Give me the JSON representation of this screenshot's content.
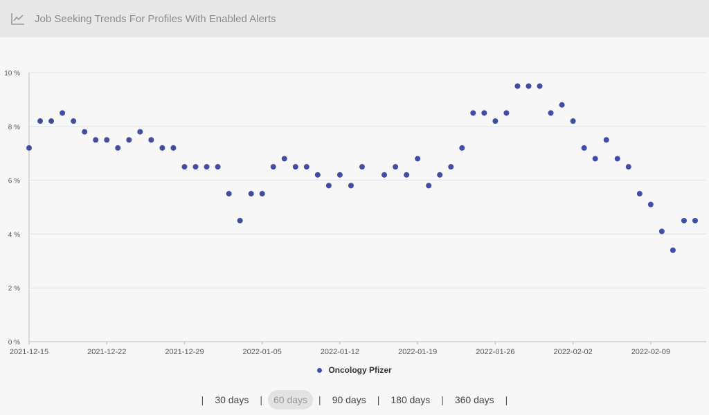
{
  "header": {
    "title": "Job Seeking Trends For Profiles With Enabled Alerts",
    "icon": "line-chart-icon"
  },
  "ranges": {
    "options": [
      "30 days",
      "60 days",
      "90 days",
      "180 days",
      "360 days"
    ],
    "selected": "60 days",
    "separator": "|"
  },
  "colors": {
    "series": "#3f4ea3",
    "grid": "#e3e3e3",
    "axis": "#bbbbbb",
    "header_bg": "#e8e8e8"
  },
  "chart_data": {
    "type": "scatter",
    "title": "",
    "xlabel": "",
    "ylabel": "",
    "ylim": [
      0,
      10
    ],
    "xlim": [
      "2021-12-15",
      "2022-02-14"
    ],
    "yticks": [
      "0 %",
      "2 %",
      "4 %",
      "6 %",
      "8 %",
      "10 %"
    ],
    "xticks": [
      "2021-12-15",
      "2021-12-22",
      "2021-12-29",
      "2022-01-05",
      "2022-01-12",
      "2022-01-19",
      "2022-01-26",
      "2022-02-02",
      "2022-02-09"
    ],
    "grid": true,
    "legend_position": "bottom",
    "series": [
      {
        "name": "Oncology Pfizer",
        "color": "#3f4ea3",
        "points": [
          [
            "2021-12-15",
            7.2
          ],
          [
            "2021-12-16",
            8.2
          ],
          [
            "2021-12-17",
            8.2
          ],
          [
            "2021-12-18",
            8.5
          ],
          [
            "2021-12-19",
            8.2
          ],
          [
            "2021-12-20",
            7.8
          ],
          [
            "2021-12-21",
            7.5
          ],
          [
            "2021-12-22",
            7.5
          ],
          [
            "2021-12-23",
            7.2
          ],
          [
            "2021-12-24",
            7.5
          ],
          [
            "2021-12-25",
            7.8
          ],
          [
            "2021-12-26",
            7.5
          ],
          [
            "2021-12-27",
            7.2
          ],
          [
            "2021-12-28",
            7.2
          ],
          [
            "2021-12-29",
            6.5
          ],
          [
            "2021-12-30",
            6.5
          ],
          [
            "2021-12-31",
            6.5
          ],
          [
            "2022-01-01",
            6.5
          ],
          [
            "2022-01-02",
            5.5
          ],
          [
            "2022-01-03",
            4.5
          ],
          [
            "2022-01-04",
            5.5
          ],
          [
            "2022-01-05",
            5.5
          ],
          [
            "2022-01-06",
            6.5
          ],
          [
            "2022-01-07",
            6.8
          ],
          [
            "2022-01-08",
            6.5
          ],
          [
            "2022-01-09",
            6.5
          ],
          [
            "2022-01-10",
            6.2
          ],
          [
            "2022-01-11",
            5.8
          ],
          [
            "2022-01-12",
            6.2
          ],
          [
            "2022-01-13",
            5.8
          ],
          [
            "2022-01-14",
            6.5
          ],
          [
            "2022-01-16",
            6.2
          ],
          [
            "2022-01-17",
            6.5
          ],
          [
            "2022-01-18",
            6.2
          ],
          [
            "2022-01-19",
            6.8
          ],
          [
            "2022-01-20",
            5.8
          ],
          [
            "2022-01-21",
            6.2
          ],
          [
            "2022-01-22",
            6.5
          ],
          [
            "2022-01-23",
            7.2
          ],
          [
            "2022-01-24",
            8.5
          ],
          [
            "2022-01-25",
            8.5
          ],
          [
            "2022-01-26",
            8.2
          ],
          [
            "2022-01-27",
            8.5
          ],
          [
            "2022-01-28",
            9.5
          ],
          [
            "2022-01-29",
            9.5
          ],
          [
            "2022-01-30",
            9.5
          ],
          [
            "2022-01-31",
            8.5
          ],
          [
            "2022-02-01",
            8.8
          ],
          [
            "2022-02-02",
            8.2
          ],
          [
            "2022-02-03",
            7.2
          ],
          [
            "2022-02-04",
            6.8
          ],
          [
            "2022-02-05",
            7.5
          ],
          [
            "2022-02-06",
            6.8
          ],
          [
            "2022-02-07",
            6.5
          ],
          [
            "2022-02-08",
            5.5
          ],
          [
            "2022-02-09",
            5.1
          ],
          [
            "2022-02-10",
            4.1
          ],
          [
            "2022-02-11",
            3.4
          ],
          [
            "2022-02-12",
            4.5
          ],
          [
            "2022-02-13",
            4.5
          ]
        ]
      }
    ]
  }
}
